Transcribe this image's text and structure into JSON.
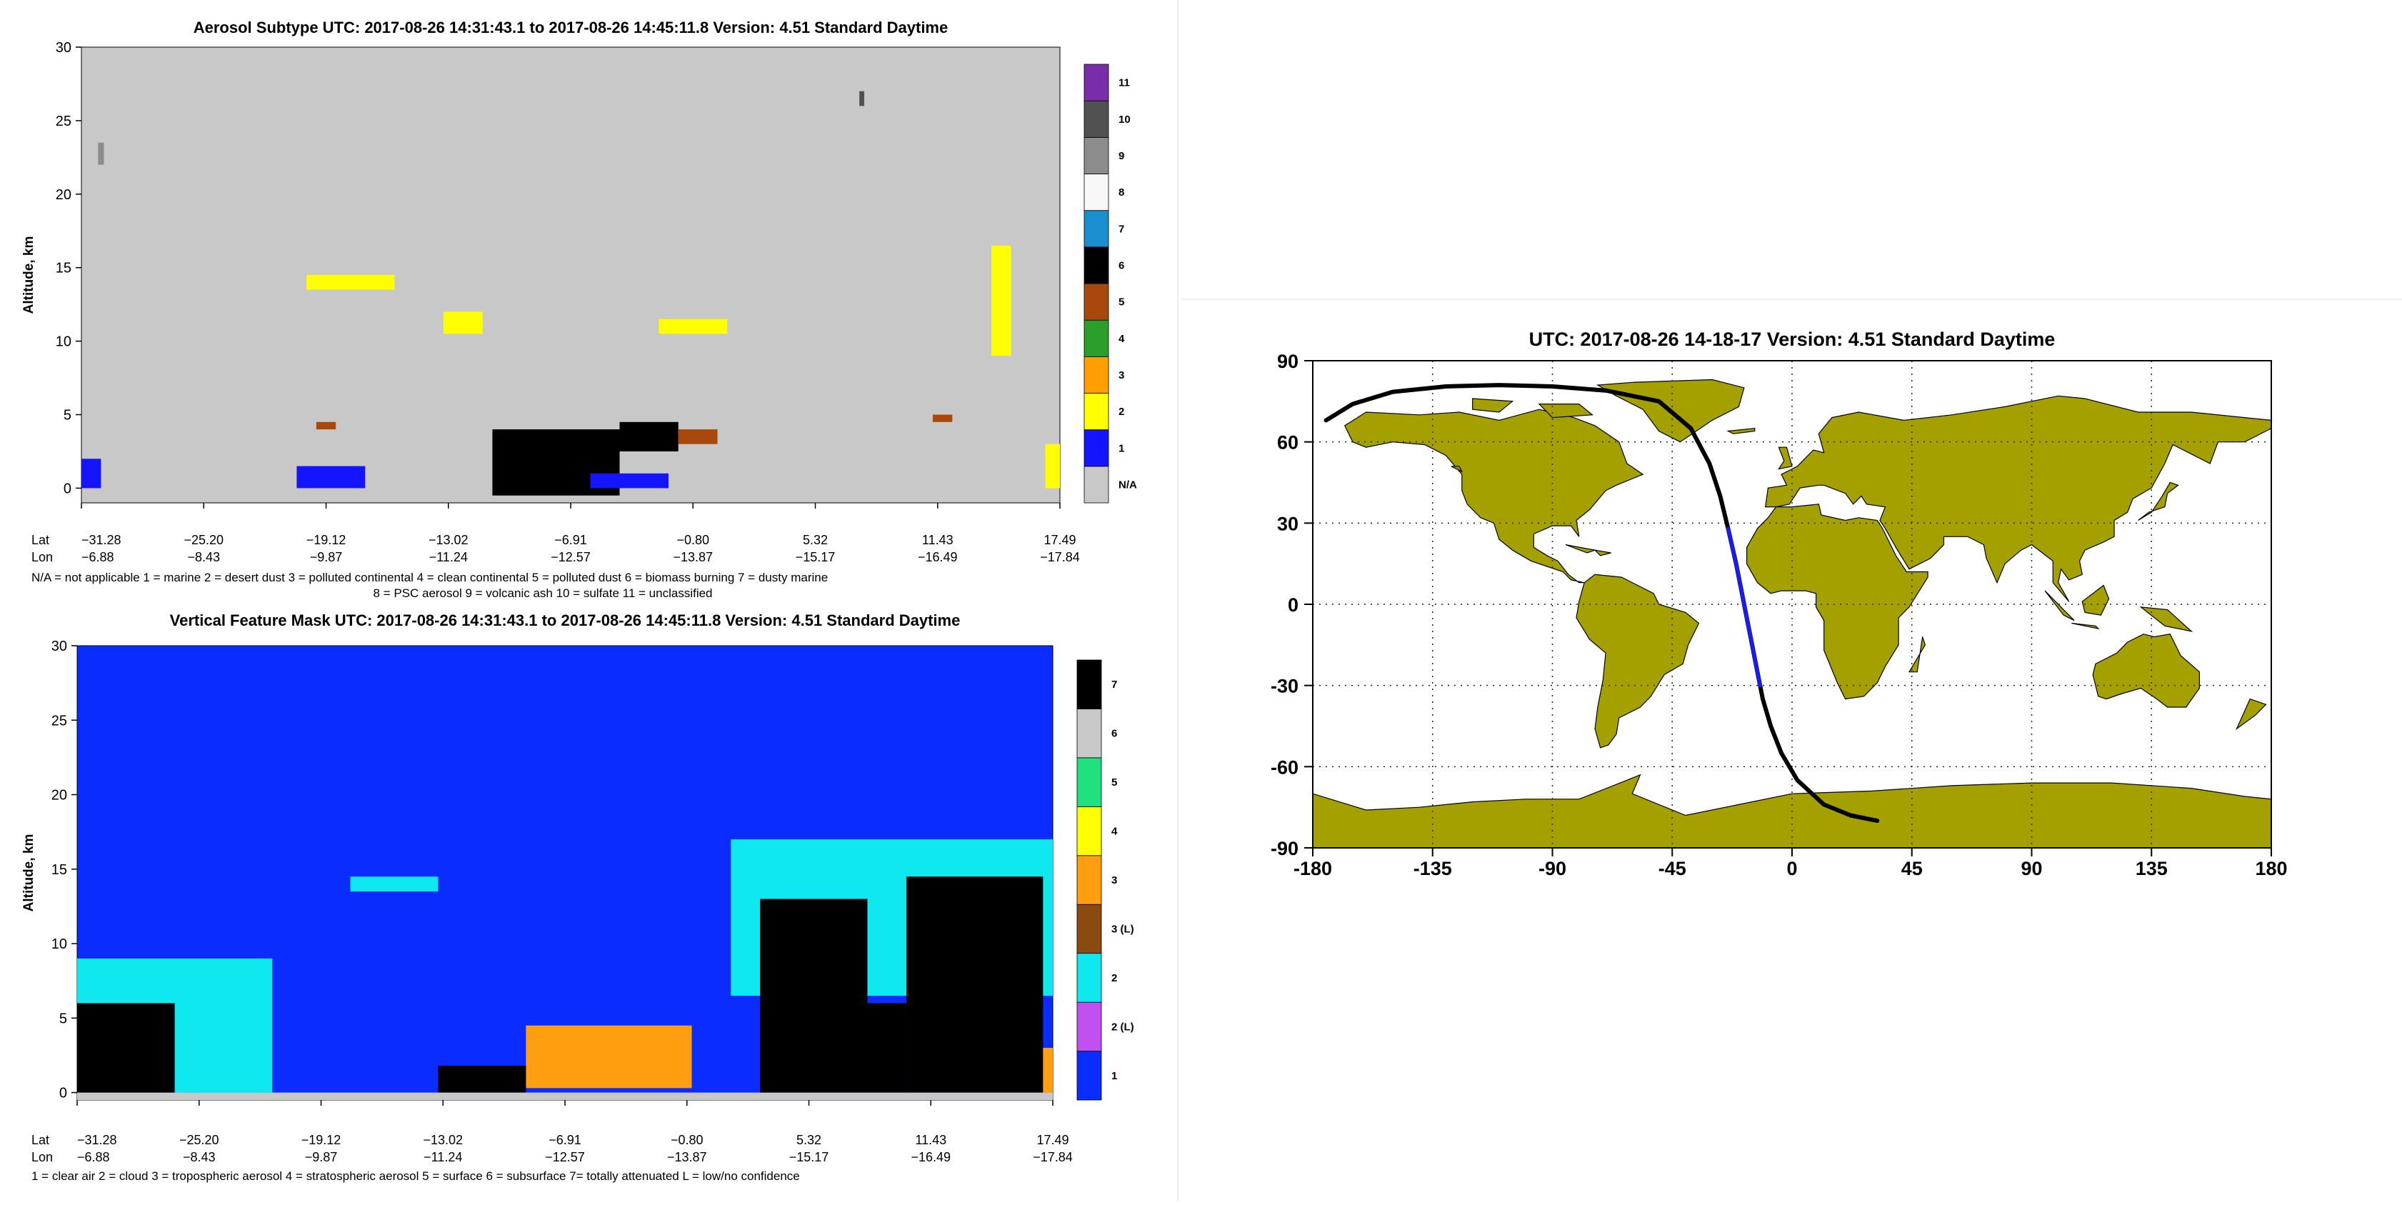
{
  "colors": {
    "na_gray": "#c8c8c8",
    "vfm_blue": "#0a2cff",
    "land": "#a3a000",
    "ocean": "#ffffff",
    "track": "#000000",
    "track_day": "#1a1aff"
  },
  "chart_data": [
    {
      "type": "heatmap",
      "id": "aerosol_subtype",
      "title": "Aerosol Subtype    UTC:  2017-08-26   14:31:43.1   to   2017-08-26   14:45:11.8    Version:  4.51   Standard  Daytime",
      "ylabel": "Altitude, km",
      "ylim": [
        -1,
        30
      ],
      "yticks": [
        0,
        5,
        10,
        15,
        20,
        25,
        30
      ],
      "lat_label": "Lat",
      "lon_label": "Lon",
      "lat_ticks": [
        "−31.28",
        "−25.20",
        "−19.12",
        "−13.02",
        "−6.91",
        "−0.80",
        "5.32",
        "11.43",
        "17.49"
      ],
      "lon_ticks": [
        "−6.88",
        "−8.43",
        "−9.87",
        "−11.24",
        "−12.57",
        "−13.87",
        "−15.17",
        "−16.49",
        "−17.84"
      ],
      "colorbar": [
        {
          "label": "N/A",
          "color": "#c8c8c8"
        },
        {
          "label": "1",
          "color": "#1414ff"
        },
        {
          "label": "2",
          "color": "#ffff00"
        },
        {
          "label": "3",
          "color": "#ff9f00"
        },
        {
          "label": "4",
          "color": "#2aa02a"
        },
        {
          "label": "5",
          "color": "#a8480a"
        },
        {
          "label": "6",
          "color": "#000000"
        },
        {
          "label": "7",
          "color": "#1a8fd0"
        },
        {
          "label": "8",
          "color": "#f8f8f8"
        },
        {
          "label": "9",
          "color": "#8c8c8c"
        },
        {
          "label": "10",
          "color": "#505050"
        },
        {
          "label": "11",
          "color": "#7a2da8"
        }
      ],
      "legend_lines": [
        "N/A = not applicable      1 = marine      2 = desert dust      3 = polluted continental      4 = clean continental      5 = polluted dust      6 = biomass burning      7 = dusty marine",
        "8 = PSC aerosol      9 = volcanic ash      10 = sulfate      11 = unclassified"
      ],
      "features": [
        {
          "x0": 0.42,
          "x1": 0.55,
          "y0": -0.5,
          "y1": 4.0,
          "class": 6
        },
        {
          "x0": 0.55,
          "x1": 0.61,
          "y0": 2.5,
          "y1": 4.5,
          "class": 6
        },
        {
          "x0": 0.61,
          "x1": 0.65,
          "y0": 3.0,
          "y1": 4.0,
          "class": 5
        },
        {
          "x0": 0.23,
          "x1": 0.32,
          "y0": 13.5,
          "y1": 14.5,
          "class": 2
        },
        {
          "x0": 0.37,
          "x1": 0.41,
          "y0": 10.5,
          "y1": 12.0,
          "class": 2
        },
        {
          "x0": 0.59,
          "x1": 0.66,
          "y0": 10.5,
          "y1": 11.5,
          "class": 2
        },
        {
          "x0": 0.0,
          "x1": 0.02,
          "y0": 0.0,
          "y1": 2.0,
          "class": 1
        },
        {
          "x0": 0.22,
          "x1": 0.29,
          "y0": 0.0,
          "y1": 1.5,
          "class": 1
        },
        {
          "x0": 0.52,
          "x1": 0.6,
          "y0": 0.0,
          "y1": 1.0,
          "class": 1
        },
        {
          "x0": 0.985,
          "x1": 1.0,
          "y0": 0.0,
          "y1": 3.0,
          "class": 2
        },
        {
          "x0": 0.93,
          "x1": 0.95,
          "y0": 9.0,
          "y1": 16.5,
          "class": 2
        },
        {
          "x0": 0.24,
          "x1": 0.26,
          "y0": 4.0,
          "y1": 4.5,
          "class": 5
        },
        {
          "x0": 0.87,
          "x1": 0.89,
          "y0": 4.5,
          "y1": 5.0,
          "class": 5
        },
        {
          "x0": 0.017,
          "x1": 0.023,
          "y0": 22.0,
          "y1": 23.5,
          "class": 9
        },
        {
          "x0": 0.795,
          "x1": 0.8,
          "y0": 26.0,
          "y1": 27.0,
          "class": 10
        }
      ]
    },
    {
      "type": "heatmap",
      "id": "vertical_feature_mask",
      "title": "Vertical Feature Mask    UTC:  2017-08-26   14:31:43.1   to   2017-08-26   14:45:11.8    Version:  4.51   Standard  Daytime",
      "ylabel": "Altitude, km",
      "ylim": [
        -0.5,
        30
      ],
      "yticks": [
        0,
        5,
        10,
        15,
        20,
        25,
        30
      ],
      "lat_label": "Lat",
      "lon_label": "Lon",
      "lat_ticks": [
        "−31.28",
        "−25.20",
        "−19.12",
        "−13.02",
        "−6.91",
        "−0.80",
        "5.32",
        "11.43",
        "17.49"
      ],
      "lon_ticks": [
        "−6.88",
        "−8.43",
        "−9.87",
        "−11.24",
        "−12.57",
        "−13.87",
        "−15.17",
        "−16.49",
        "−17.84"
      ],
      "colorbar": [
        {
          "label": "1",
          "color": "#0a2cff"
        },
        {
          "label": "2 (L)",
          "color": "#c050f0"
        },
        {
          "label": "2",
          "color": "#10e8f0"
        },
        {
          "label": "3 (L)",
          "color": "#8a4a10"
        },
        {
          "label": "3",
          "color": "#ff9f10"
        },
        {
          "label": "4",
          "color": "#ffff00"
        },
        {
          "label": "5",
          "color": "#20e080"
        },
        {
          "label": "6",
          "color": "#c8c8c8"
        },
        {
          "label": "7",
          "color": "#000000"
        }
      ],
      "legend_lines": [
        "1 = clear air      2 = cloud      3 = tropospheric aerosol      4 = stratospheric aerosol      5 = surface      6 = subsurface      7= totally attenuated      L = low/no confidence"
      ],
      "features": [
        {
          "x0": 0.0,
          "x1": 1.0,
          "y0": -0.5,
          "y1": 0.0,
          "class": "6"
        },
        {
          "x0": 0.0,
          "x1": 0.2,
          "y0": 0.0,
          "y1": 9.0,
          "class": "2"
        },
        {
          "x0": 0.0,
          "x1": 0.1,
          "y0": 0.0,
          "y1": 6.0,
          "class": "7"
        },
        {
          "x0": 0.28,
          "x1": 0.37,
          "y0": 13.5,
          "y1": 14.5,
          "class": "2"
        },
        {
          "x0": 0.46,
          "x1": 0.63,
          "y0": 0.3,
          "y1": 4.5,
          "class": "3"
        },
        {
          "x0": 0.37,
          "x1": 0.46,
          "y0": 0.0,
          "y1": 1.8,
          "class": "7"
        },
        {
          "x0": 0.67,
          "x1": 1.0,
          "y0": 6.5,
          "y1": 17.0,
          "class": "2"
        },
        {
          "x0": 0.7,
          "x1": 0.81,
          "y0": 0.0,
          "y1": 13.0,
          "class": "7"
        },
        {
          "x0": 0.85,
          "x1": 0.99,
          "y0": 0.0,
          "y1": 14.5,
          "class": "7"
        },
        {
          "x0": 0.81,
          "x1": 0.85,
          "y0": 0.0,
          "y1": 6.0,
          "class": "7"
        },
        {
          "x0": 0.99,
          "x1": 1.0,
          "y0": 0.0,
          "y1": 3.0,
          "class": "3"
        }
      ]
    },
    {
      "type": "map",
      "id": "ground_track",
      "title": "UTC: 2017-08-26   14-18-17    Version: 4.51   Standard    Daytime",
      "xlim": [
        -180,
        180
      ],
      "ylim": [
        -90,
        90
      ],
      "xticks": [
        -180,
        -135,
        -90,
        -45,
        0,
        45,
        90,
        135,
        180
      ],
      "yticks": [
        90,
        60,
        30,
        0,
        -30,
        -60,
        -90
      ],
      "grid": true,
      "track": [
        [
          -175,
          68
        ],
        [
          -165,
          74
        ],
        [
          -150,
          78.5
        ],
        [
          -130,
          80.5
        ],
        [
          -110,
          81
        ],
        [
          -90,
          80.5
        ],
        [
          -70,
          79
        ],
        [
          -50,
          75
        ],
        [
          -38,
          65
        ],
        [
          -31,
          52
        ],
        [
          -27,
          40
        ],
        [
          -24,
          28
        ],
        [
          -21,
          15
        ],
        [
          -19,
          5
        ],
        [
          -17,
          -5
        ],
        [
          -15,
          -15
        ],
        [
          -13,
          -25
        ],
        [
          -11,
          -35
        ],
        [
          -8,
          -45
        ],
        [
          -4,
          -55
        ],
        [
          2,
          -65
        ],
        [
          12,
          -74
        ],
        [
          22,
          -78
        ],
        [
          32,
          -80
        ]
      ],
      "track_day": [
        [
          -24,
          28
        ],
        [
          -21,
          15
        ],
        [
          -19,
          5
        ],
        [
          -17,
          -5
        ],
        [
          -15,
          -15
        ],
        [
          -13,
          -25
        ],
        [
          -12,
          -30
        ]
      ]
    }
  ]
}
